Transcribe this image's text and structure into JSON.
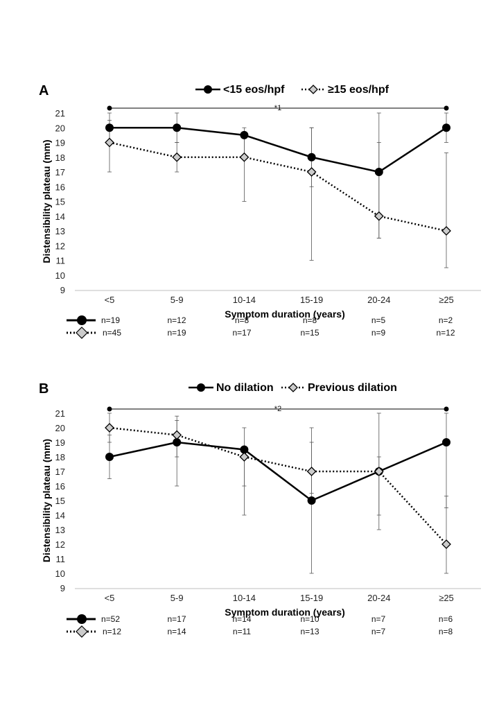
{
  "chart_data": [
    {
      "type": "line",
      "panel": "A",
      "categories": [
        "<5",
        "5-9",
        "10-14",
        "15-19",
        "20-24",
        "≥25"
      ],
      "xlabel": "Symptom duration (years)",
      "ylabel": "Distensibility plateau (mm)",
      "ylim": [
        9,
        21
      ],
      "yticks": [
        9,
        10,
        11,
        12,
        13,
        14,
        15,
        16,
        17,
        18,
        19,
        20,
        21
      ],
      "significance": {
        "from": "<5",
        "to": "≥25",
        "y": 21.3,
        "label": "*1"
      },
      "series": [
        {
          "name": "<15 eos/hpf",
          "style": "solid",
          "marker": "circle",
          "color": "#000000",
          "values": [
            20,
            20,
            19.5,
            18,
            17,
            20
          ],
          "err_low": [
            19,
            19,
            18,
            16,
            12.5,
            19
          ],
          "err_high": [
            21,
            21,
            20,
            20,
            21,
            21
          ],
          "n": [
            "n=19",
            "n=12",
            "n=8",
            "n=8",
            "n=5",
            "n=2"
          ]
        },
        {
          "name": "≥15 eos/hpf",
          "style": "dotted",
          "marker": "diamond",
          "color": "#cccccc",
          "values": [
            19,
            18,
            18,
            17,
            14,
            13
          ],
          "err_low": [
            17,
            17,
            15,
            11,
            12.5,
            10.5
          ],
          "err_high": [
            20.5,
            19,
            19.5,
            20,
            19,
            18.3
          ],
          "n": [
            "n=45",
            "n=19",
            "n=17",
            "n=15",
            "n=9",
            "n=12"
          ]
        }
      ]
    },
    {
      "type": "line",
      "panel": "B",
      "categories": [
        "<5",
        "5-9",
        "10-14",
        "15-19",
        "20-24",
        "≥25"
      ],
      "xlabel": "Symptom duration (years)",
      "ylabel": "Distensibility plateau (mm)",
      "ylim": [
        9,
        21
      ],
      "yticks": [
        9,
        10,
        11,
        12,
        13,
        14,
        15,
        16,
        17,
        18,
        19,
        20,
        21
      ],
      "significance": {
        "from": "<5",
        "to": "≥25",
        "y": 21.3,
        "label": "*2"
      },
      "series": [
        {
          "name": "No dilation",
          "style": "solid",
          "marker": "circle",
          "color": "#000000",
          "values": [
            18,
            19,
            18.5,
            15,
            17,
            19
          ],
          "err_low": [
            16.5,
            16,
            14,
            10,
            13,
            14.5
          ],
          "err_high": [
            19.5,
            20.5,
            20,
            19,
            21,
            21
          ],
          "n": [
            "n=52",
            "n=17",
            "n=14",
            "n=10",
            "n=7",
            "n=6"
          ]
        },
        {
          "name": "Previous dilation",
          "style": "dotted",
          "marker": "diamond",
          "color": "#cccccc",
          "values": [
            20,
            19.5,
            18,
            17,
            17,
            12
          ],
          "err_low": [
            19,
            18,
            16,
            15.5,
            14,
            10
          ],
          "err_high": [
            21,
            20.8,
            18.5,
            20,
            18,
            15.3
          ],
          "n": [
            "n=12",
            "n=14",
            "n=11",
            "n=13",
            "n=7",
            "n=8"
          ]
        }
      ]
    }
  ]
}
